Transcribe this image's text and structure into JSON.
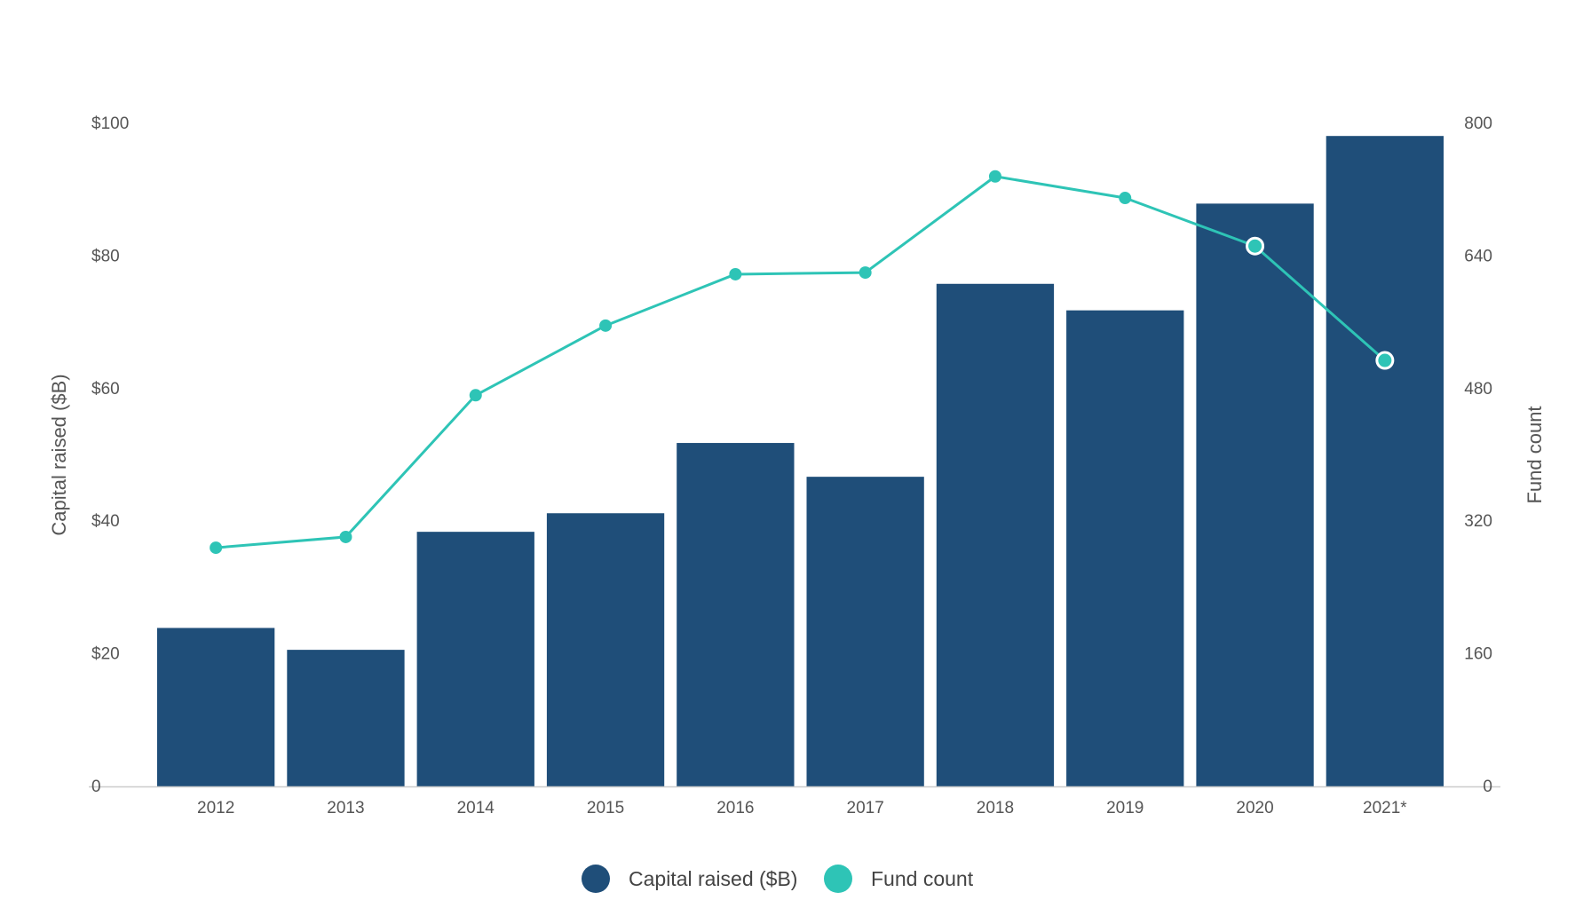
{
  "chart_data": {
    "type": "bar",
    "categories": [
      "2012",
      "2013",
      "2014",
      "2015",
      "2016",
      "2017",
      "2018",
      "2019",
      "2020",
      "2021*"
    ],
    "series": [
      {
        "name": "Capital raised ($B)",
        "type": "bar",
        "axis": "left",
        "color": "#1f4e79",
        "values": [
          23.9,
          20.6,
          38.4,
          41.2,
          51.8,
          46.7,
          75.8,
          71.8,
          87.9,
          98.1
        ]
      },
      {
        "name": "Fund count",
        "type": "line",
        "axis": "right",
        "color": "#2ec4b6",
        "values": [
          288,
          301,
          472,
          556,
          618,
          620,
          736,
          710,
          652,
          514
        ],
        "highlighted_points": [
          "2020",
          "2021*"
        ]
      }
    ],
    "y_left": {
      "label": "Capital raised ($B)",
      "ticks": [
        "0",
        "$20",
        "$40",
        "$60",
        "$80",
        "$100"
      ],
      "tick_values": [
        0,
        20,
        40,
        60,
        80,
        100
      ],
      "ylim": [
        0,
        100
      ]
    },
    "y_right": {
      "label": "Fund count",
      "ticks": [
        "0",
        "160",
        "320",
        "480",
        "640",
        "800"
      ],
      "tick_values": [
        0,
        160,
        320,
        480,
        640,
        800
      ],
      "ylim": [
        0,
        800
      ]
    },
    "grid": false,
    "legend_position": "bottom-center",
    "legend": [
      {
        "label": "Capital raised ($B)",
        "color": "#1f4e79"
      },
      {
        "label": "Fund count",
        "color": "#2ec4b6"
      }
    ]
  }
}
